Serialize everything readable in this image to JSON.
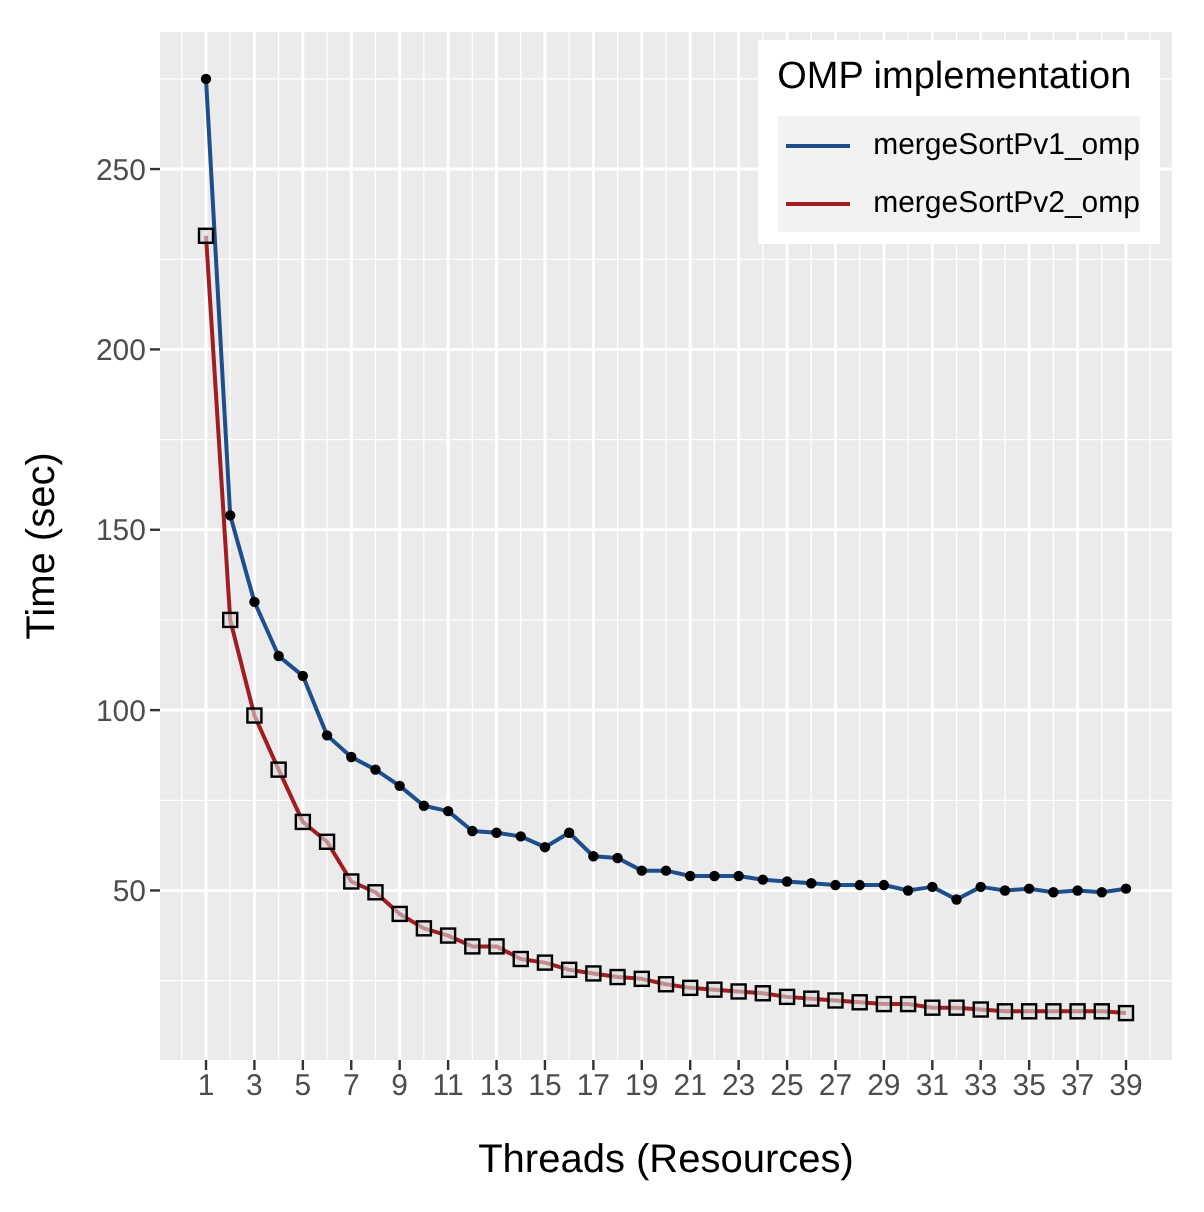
{
  "chart_data": {
    "type": "line",
    "xlabel": "Threads (Resources)",
    "ylabel": "Time (sec)",
    "legend_title": "OMP implementation",
    "legend": "top right",
    "grid": true,
    "x": [
      1,
      2,
      3,
      4,
      5,
      6,
      7,
      8,
      9,
      10,
      11,
      12,
      13,
      14,
      15,
      16,
      17,
      18,
      19,
      20,
      21,
      22,
      23,
      24,
      25,
      26,
      27,
      28,
      29,
      30,
      31,
      32,
      33,
      34,
      35,
      36,
      37,
      38,
      39
    ],
    "xlim": [
      -0.9,
      40.9
    ],
    "xticks": [
      1,
      3,
      5,
      7,
      9,
      11,
      13,
      15,
      17,
      19,
      21,
      23,
      25,
      27,
      29,
      31,
      33,
      35,
      37,
      39
    ],
    "ylim": [
      3,
      288
    ],
    "yticks": [
      50,
      100,
      150,
      200,
      250
    ],
    "series": [
      {
        "name": "mergeSortPv1_omp",
        "color": "#1f4e8c",
        "marker": "circle",
        "values": [
          275,
          154,
          130,
          115,
          109.5,
          93,
          87,
          83.5,
          79,
          73.5,
          72,
          66.5,
          66,
          65,
          62,
          66,
          59.5,
          59,
          55.5,
          55.5,
          54,
          54,
          54,
          53,
          52.5,
          52,
          51.5,
          51.5,
          51.5,
          50,
          51,
          47.5,
          51,
          50,
          50.5,
          49.5,
          50,
          49.5,
          50.5
        ]
      },
      {
        "name": "mergeSortPv2_omp",
        "color": "#a11d21",
        "marker": "square",
        "values": [
          231.5,
          125,
          98.5,
          83.5,
          69,
          63.5,
          52.5,
          49.5,
          43.5,
          39.5,
          37.5,
          34.5,
          34.5,
          31,
          30,
          28,
          27,
          26,
          25.5,
          24,
          23,
          22.5,
          22,
          21.5,
          20.5,
          20,
          19.5,
          19,
          18.5,
          18.5,
          17.5,
          17.5,
          17,
          16.5,
          16.5,
          16.5,
          16.5,
          16.5,
          16
        ]
      }
    ]
  }
}
